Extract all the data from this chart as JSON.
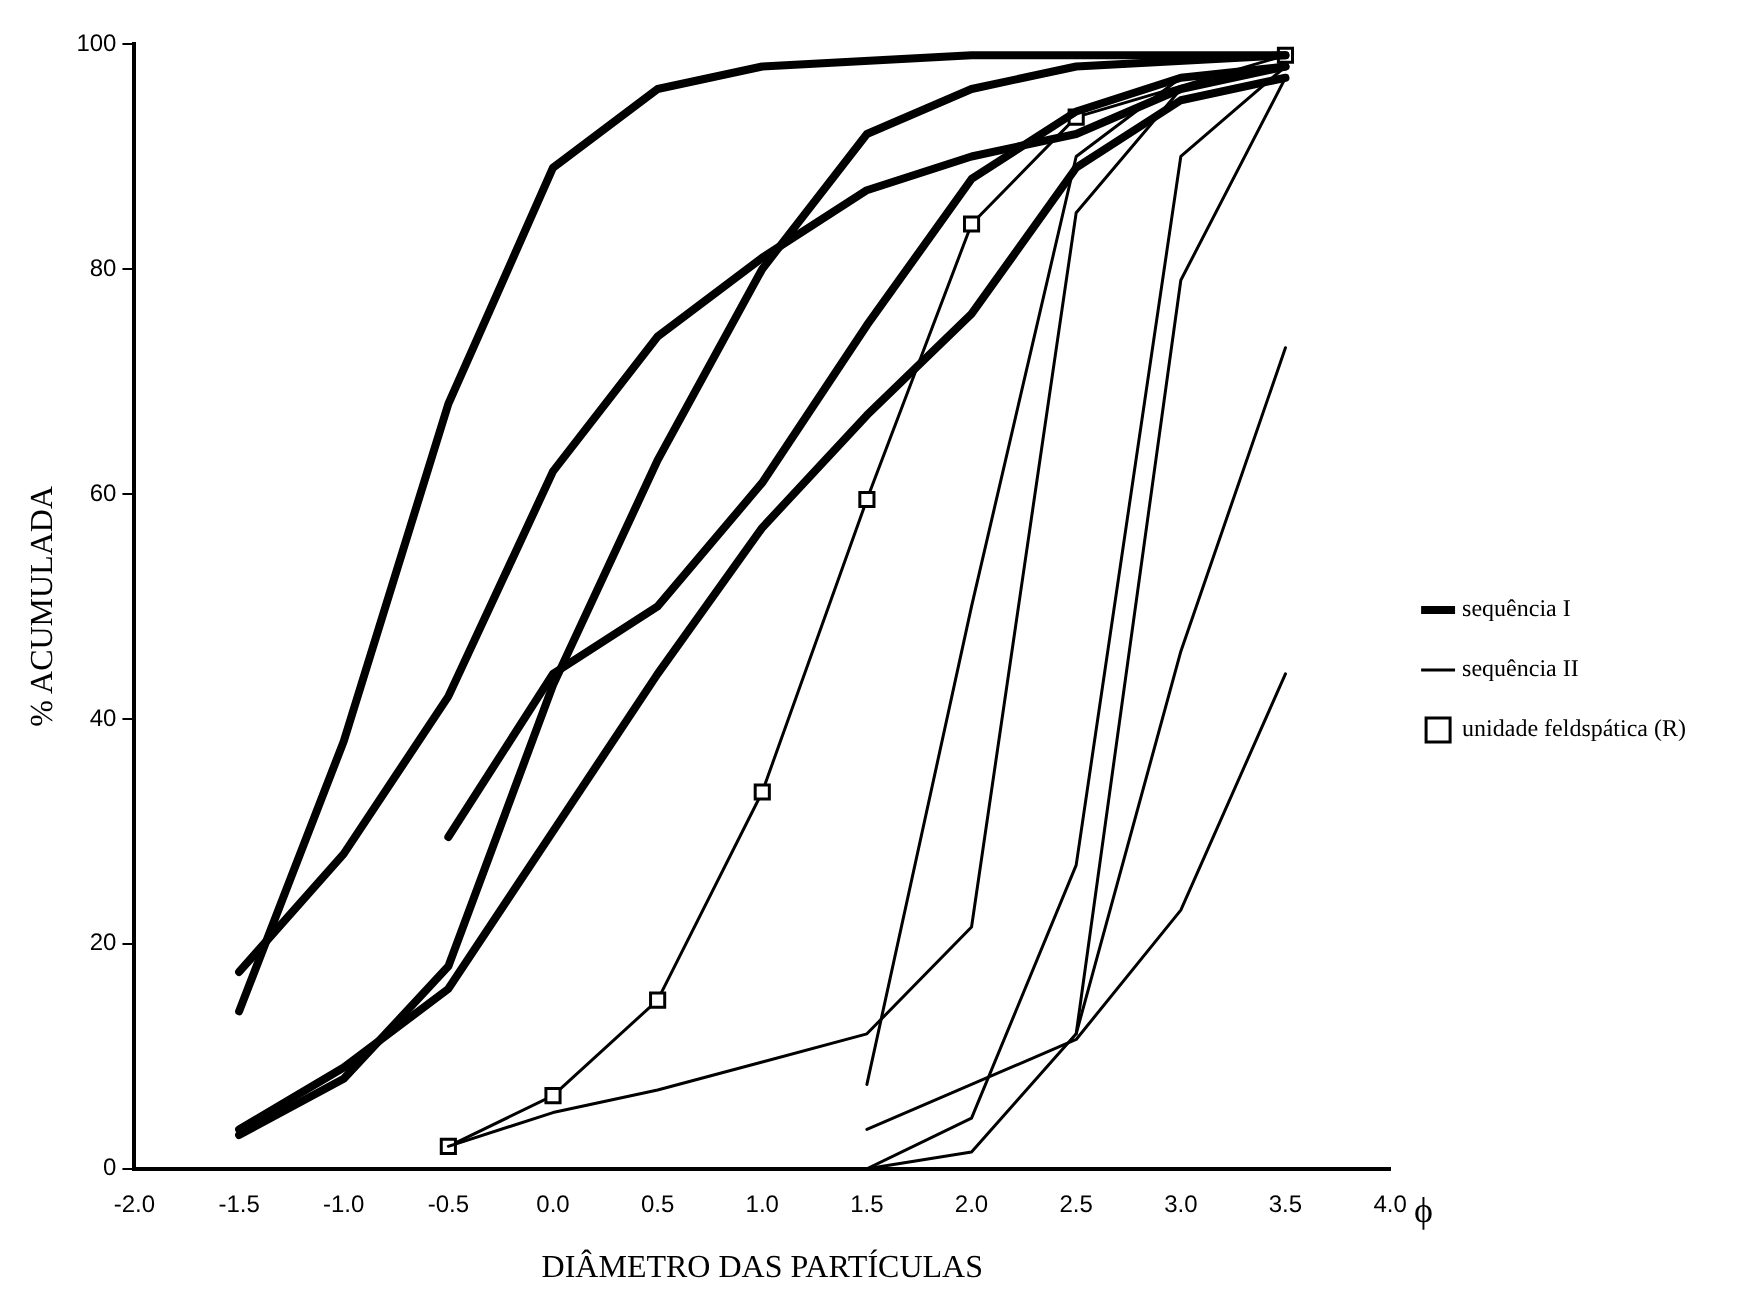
{
  "chart_data": {
    "type": "line",
    "xlabel": "DIÂMETRO DAS PARTÍCULAS",
    "ylabel": "% ACUMULADA",
    "annotations": [
      "ϕ"
    ],
    "xlim": [
      -2.0,
      4.0
    ],
    "xticks": [
      {
        "value": -2,
        "label": "-2.0"
      },
      {
        "value": -1.5,
        "label": "-1.5"
      },
      {
        "value": -1,
        "label": "-1.0"
      },
      {
        "value": -0.5,
        "label": "-0.5"
      },
      {
        "value": 0,
        "label": "0.0"
      },
      {
        "value": 0.5,
        "label": "0.5"
      },
      {
        "value": 1,
        "label": "1.0"
      },
      {
        "value": 1.5,
        "label": "1.5"
      },
      {
        "value": 2,
        "label": "2.0"
      },
      {
        "value": 2.5,
        "label": "2.5"
      },
      {
        "value": 3,
        "label": "3.0"
      },
      {
        "value": 3.5,
        "label": "3.5"
      },
      {
        "value": 4,
        "label": "4.0"
      }
    ],
    "ylim": [
      0,
      100
    ],
    "yticks": [
      0,
      20,
      40,
      60,
      80,
      100
    ],
    "grid": false,
    "legend": "right",
    "marker": "none",
    "line_style": "solid",
    "series": [
      {
        "name": "sequência I",
        "color": "#000000",
        "x": [
          -1.5,
          -1.0,
          -0.5,
          0,
          0.5,
          1.0,
          2.0,
          3.5
        ],
        "values": [
          14,
          38,
          68,
          89,
          96,
          98,
          99,
          99
        ]
      },
      {
        "color": "#000000",
        "x": [
          -1.5,
          -1.0,
          -0.5,
          0,
          0.5,
          1.0,
          1.5,
          2.0,
          2.5,
          3.0,
          3.5
        ],
        "values": [
          17.5,
          28,
          42,
          62,
          74,
          81,
          87,
          90,
          92,
          96,
          98
        ]
      },
      {
        "color": "#000000",
        "x": [
          -0.5,
          0,
          0.5,
          1.0,
          1.5,
          2.0,
          2.5,
          3.0,
          3.5
        ],
        "values": [
          29.5,
          44,
          50,
          61,
          75,
          88,
          94,
          97,
          98
        ]
      },
      {
        "color": "#000000",
        "x": [
          -1.5,
          -1.0,
          -0.5,
          0,
          0.5,
          1.0,
          1.5,
          2.0,
          2.5,
          3.5
        ],
        "values": [
          3,
          8,
          18,
          43,
          63,
          80,
          92,
          96,
          98,
          99
        ]
      },
      {
        "color": "#000000",
        "x": [
          -1.5,
          -1.0,
          -0.5,
          0,
          0.5,
          1.0,
          1.5,
          2.0,
          2.5,
          3.0,
          3.5
        ],
        "values": [
          3.5,
          9,
          16,
          30,
          44,
          57,
          67,
          76,
          89,
          95,
          97
        ]
      },
      {
        "name": "sequência II",
        "color": "#000000",
        "x": [
          -0.5,
          0,
          0.5,
          1.0,
          1.5,
          2.0,
          2.5,
          3.0,
          3.5
        ],
        "values": [
          2,
          5,
          7,
          9.5,
          12,
          21.5,
          85,
          96,
          98
        ]
      },
      {
        "color": "#000000",
        "x": [
          1.5,
          2.0,
          2.5,
          3.0,
          3.5
        ],
        "values": [
          7.5,
          50,
          90,
          97,
          98
        ]
      },
      {
        "color": "#000000",
        "x": [
          1.5,
          2.0,
          2.5,
          3.0,
          3.5
        ],
        "values": [
          3.5,
          7.5,
          11.5,
          23,
          44
        ]
      },
      {
        "color": "#000000",
        "x": [
          1.0,
          1.5,
          2.0,
          2.5,
          3.0,
          3.5
        ],
        "values": [
          0,
          0,
          4.5,
          27,
          90,
          98
        ]
      },
      {
        "color": "#000000",
        "x": [
          1.0,
          1.5,
          2.0,
          2.5,
          3.0,
          3.5
        ],
        "values": [
          0,
          0,
          1.5,
          12,
          79,
          97
        ]
      },
      {
        "color": "#000000",
        "x": [
          2.5,
          3.0,
          3.5
        ],
        "values": [
          12,
          46,
          73
        ]
      },
      {
        "name": "unidade feldspática (R)",
        "marker": "square",
        "color": "#000000",
        "x": [
          -0.5,
          0,
          0.5,
          1.0,
          1.5,
          2.0,
          2.5,
          3.5
        ],
        "values": [
          2,
          6.5,
          15,
          33.5,
          59.5,
          84,
          93.5,
          99
        ]
      }
    ]
  }
}
